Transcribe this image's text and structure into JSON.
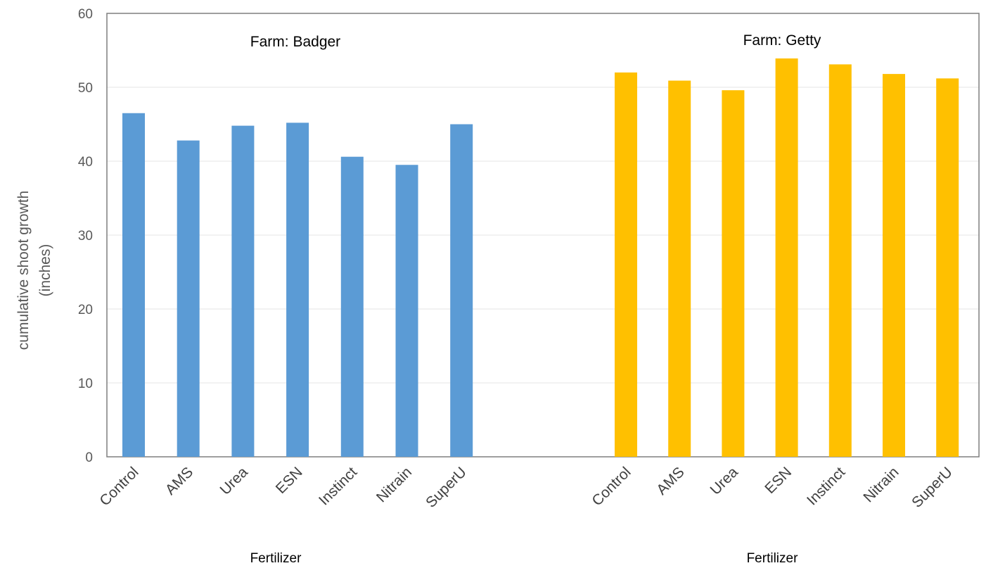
{
  "chart_data": {
    "type": "bar",
    "ylabel": [
      "cumulative shoot growth",
      "(inches)"
    ],
    "ylim": [
      0,
      60
    ],
    "yticks": [
      0,
      10,
      20,
      30,
      40,
      50,
      60
    ],
    "grid": true,
    "xlabel": "Fertilizer",
    "panels": [
      {
        "title": "Farm: Badger",
        "color": "#5b9bd5",
        "categories": [
          "Control",
          "AMS",
          "Urea",
          "ESN",
          "Instinct",
          "Nitrain",
          "SuperU"
        ],
        "values": [
          46.5,
          42.8,
          44.8,
          45.2,
          40.6,
          39.5,
          45.0
        ]
      },
      {
        "title": "Farm: Getty",
        "color": "#ffc000",
        "categories": [
          "Control",
          "AMS",
          "Urea",
          "ESN",
          "Instinct",
          "Nitrain",
          "SuperU"
        ],
        "values": [
          52.0,
          50.9,
          49.6,
          53.9,
          53.1,
          51.8,
          51.2
        ]
      }
    ]
  }
}
